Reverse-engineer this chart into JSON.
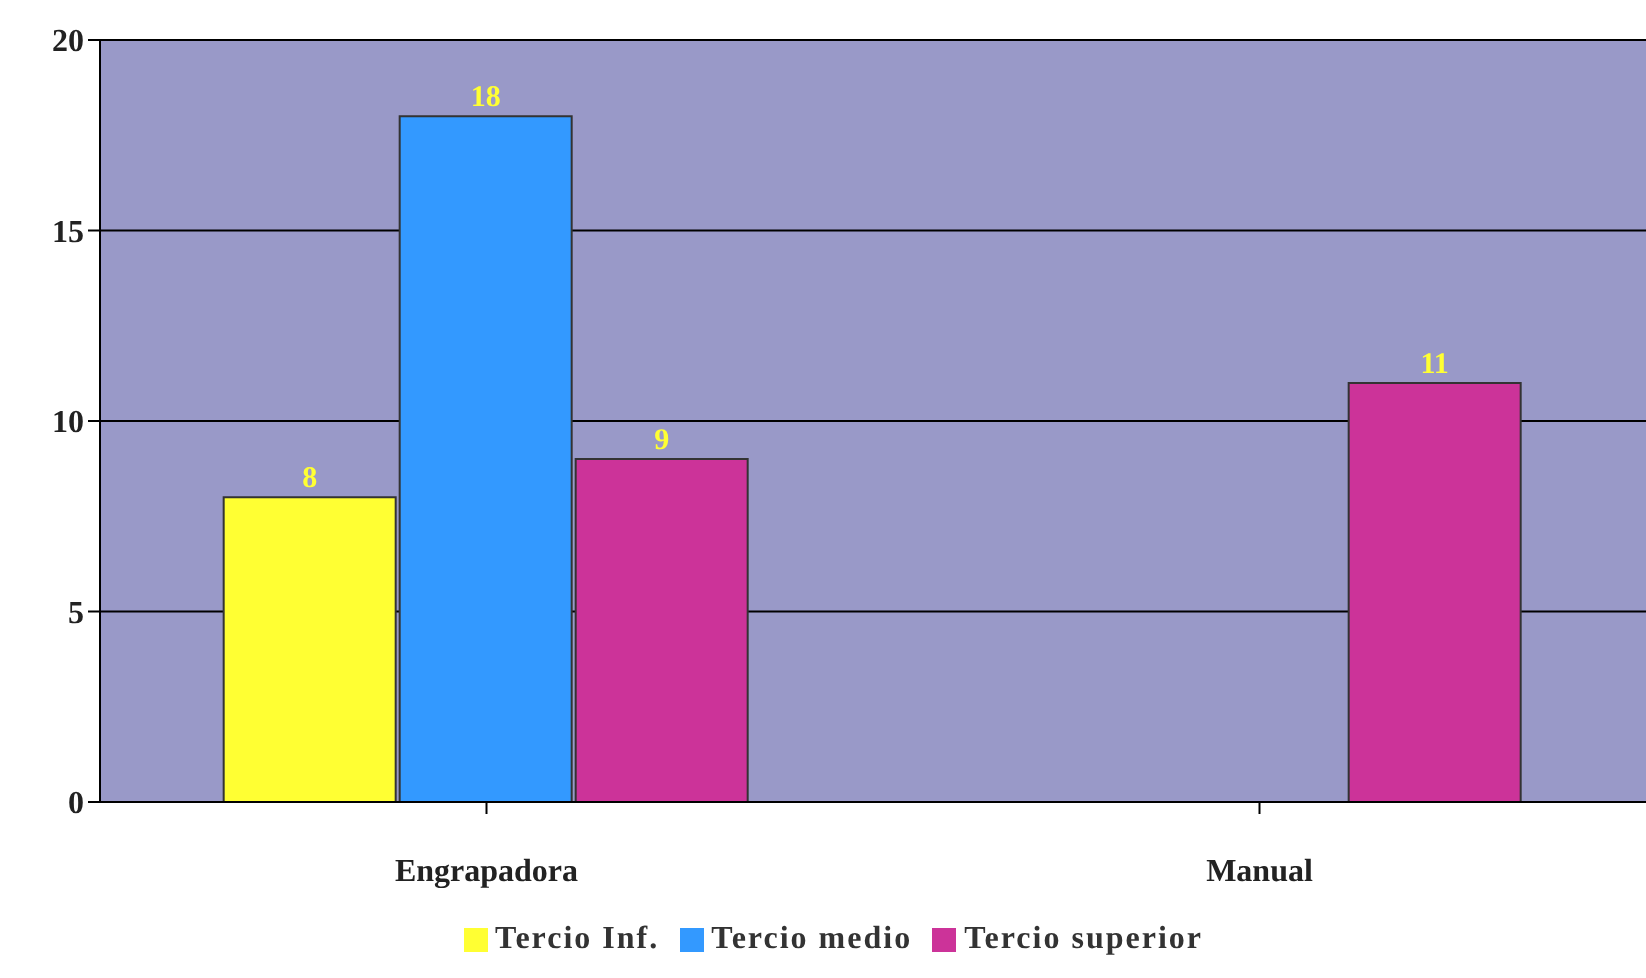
{
  "chart_data": {
    "type": "bar",
    "categories": [
      "Engrapadora",
      "Manual"
    ],
    "series": [
      {
        "name": "Tercio Inf.",
        "color": "#ffff33",
        "values": [
          8,
          null
        ]
      },
      {
        "name": "Tercio medio",
        "color": "#3399ff",
        "values": [
          18,
          null
        ]
      },
      {
        "name": "Tercio superior",
        "color": "#cc3399",
        "values": [
          9,
          11
        ]
      }
    ],
    "ylim": [
      0,
      20
    ],
    "yticks": [
      0,
      5,
      10,
      15,
      20
    ],
    "grid": "y",
    "legend": "bottom",
    "data_labels": true
  }
}
